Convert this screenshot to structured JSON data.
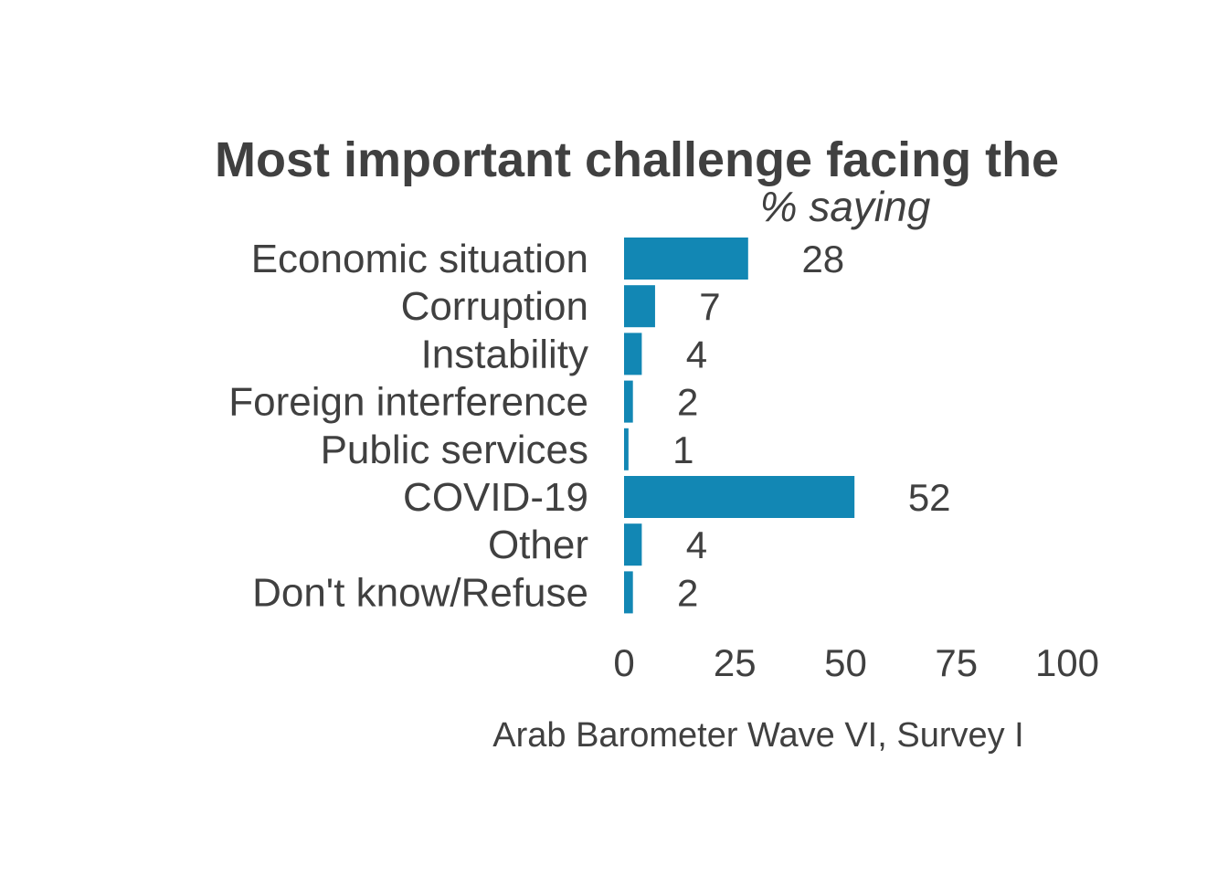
{
  "chart_data": {
    "type": "bar",
    "orientation": "horizontal",
    "title": "Most important challenge facing the",
    "subtitle": "% saying",
    "caption": "Arab Barometer Wave VI, Survey I",
    "categories": [
      "Economic situation",
      "Corruption",
      "Instability",
      "Foreign interference",
      "Public services",
      "COVID-19",
      "Other",
      "Don't know/Refuse"
    ],
    "values": [
      28,
      7,
      4,
      2,
      1,
      52,
      4,
      2
    ],
    "xlim": [
      0,
      100
    ],
    "xticks": [
      "0",
      "25",
      "50",
      "75",
      "100"
    ],
    "grid": false,
    "legend": "none",
    "bar_color": "#1287b4",
    "text_color": "#404040"
  }
}
